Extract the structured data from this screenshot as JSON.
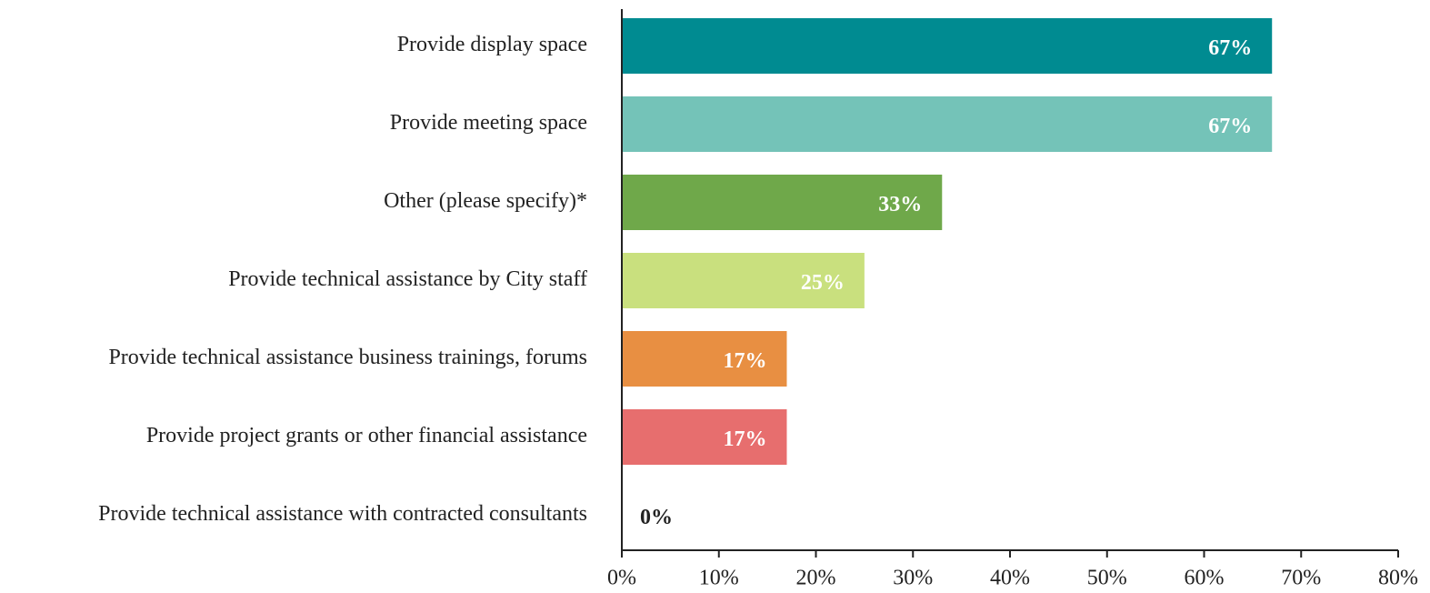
{
  "chart_data": {
    "type": "bar",
    "orientation": "horizontal",
    "categories": [
      "Provide display space",
      "Provide meeting space",
      "Other (please specify)*",
      "Provide technical assistance by City staff",
      "Provide technical assistance business trainings, forums",
      "Provide project grants or other financial assistance",
      "Provide technical assistance with contracted consultants"
    ],
    "values": [
      67,
      67,
      33,
      25,
      17,
      17,
      0
    ],
    "value_labels": [
      "67%",
      "67%",
      "33%",
      "25%",
      "17%",
      "17%",
      "0%"
    ],
    "colors": [
      "#008b91",
      "#74c3b8",
      "#6fa84a",
      "#c9e07e",
      "#e88f42",
      "#e76e6e",
      "#999999"
    ],
    "xlim": [
      0,
      80
    ],
    "xticks": [
      {
        "value": 0,
        "label": "0%"
      },
      {
        "value": 10,
        "label": "10%"
      },
      {
        "value": 20,
        "label": "20%"
      },
      {
        "value": 30,
        "label": "30%"
      },
      {
        "value": 40,
        "label": "40%"
      },
      {
        "value": 50,
        "label": "50%"
      },
      {
        "value": 60,
        "label": "60%"
      },
      {
        "value": 70,
        "label": "70%"
      },
      {
        "value": 80,
        "label": "80%"
      }
    ],
    "grid": false
  }
}
